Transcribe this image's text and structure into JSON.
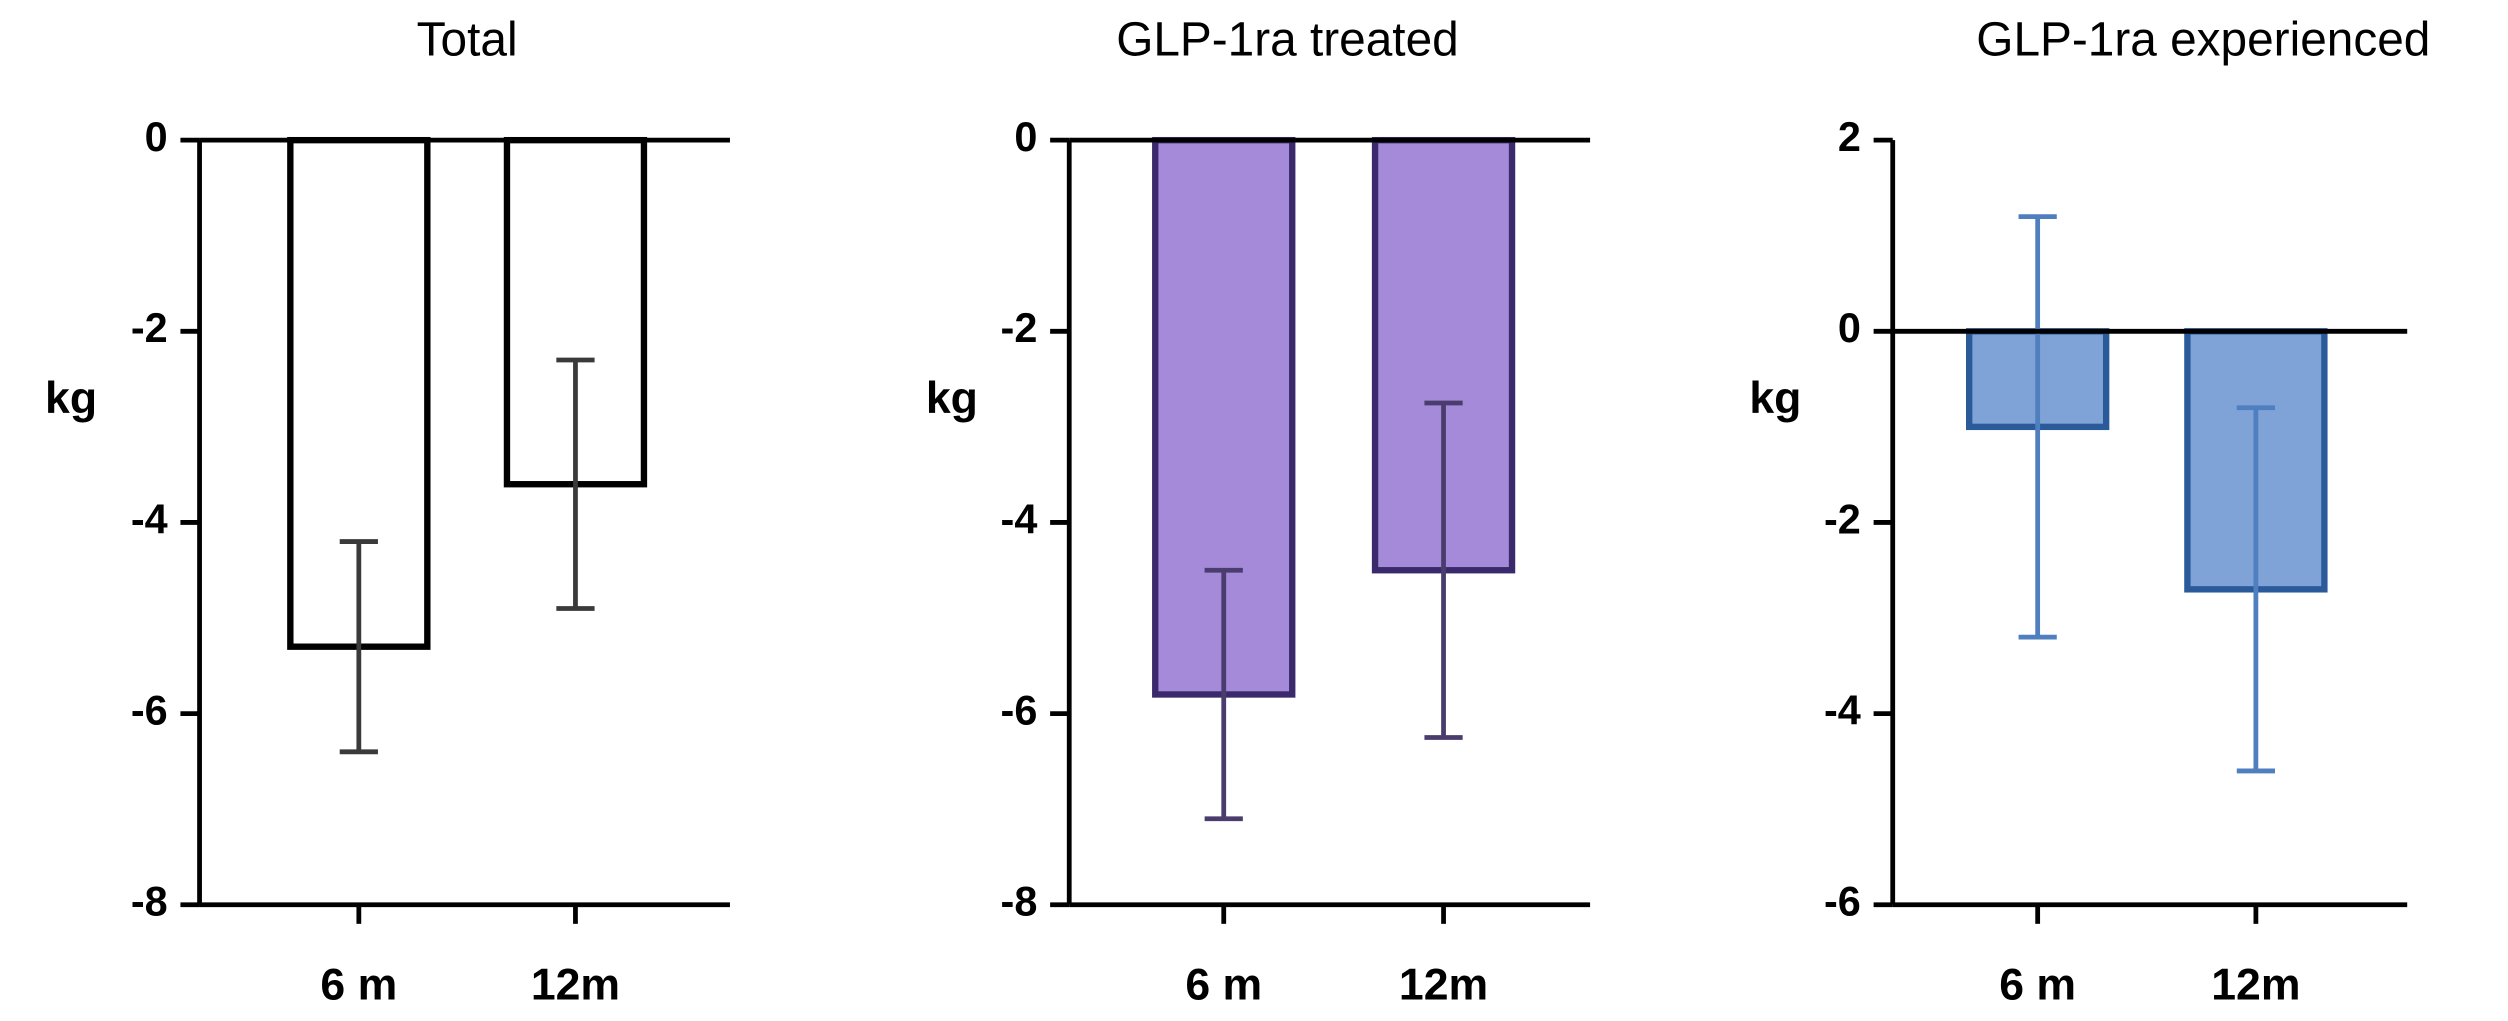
{
  "chart_data": [
    {
      "type": "bar",
      "title": "Total",
      "ylabel": "kg",
      "categories": [
        "6 m",
        "12m"
      ],
      "values": [
        -5.3,
        -3.6
      ],
      "errors": [
        1.1,
        1.3
      ],
      "color": "#ffffff",
      "edge_color": "#000000",
      "error_color": "#3a3a3a",
      "ylim": [
        -8,
        0
      ],
      "yticks": [
        -8,
        -6,
        -4,
        -2,
        0
      ]
    },
    {
      "type": "bar",
      "title": "GLP-1ra treated",
      "ylabel": "kg",
      "categories": [
        "6 m",
        "12m"
      ],
      "values": [
        -5.8,
        -4.5
      ],
      "errors": [
        1.3,
        1.75
      ],
      "color": "#a48ad8",
      "edge_color": "#3b2a6b",
      "error_color": "#4a3d6e",
      "ylim": [
        -8,
        0
      ],
      "yticks": [
        -8,
        -6,
        -4,
        -2,
        0
      ]
    },
    {
      "type": "bar",
      "title": "GLP-1ra experienced",
      "ylabel": "kg",
      "categories": [
        "6 m",
        "12m"
      ],
      "values": [
        -1.0,
        -2.7
      ],
      "errors": [
        2.2,
        1.9
      ],
      "color": "#7fa3d6",
      "edge_color": "#2b5a9a",
      "error_color": "#4f7fbf",
      "ylim": [
        -6,
        2
      ],
      "yticks": [
        -6,
        -4,
        -2,
        0,
        2
      ]
    }
  ]
}
